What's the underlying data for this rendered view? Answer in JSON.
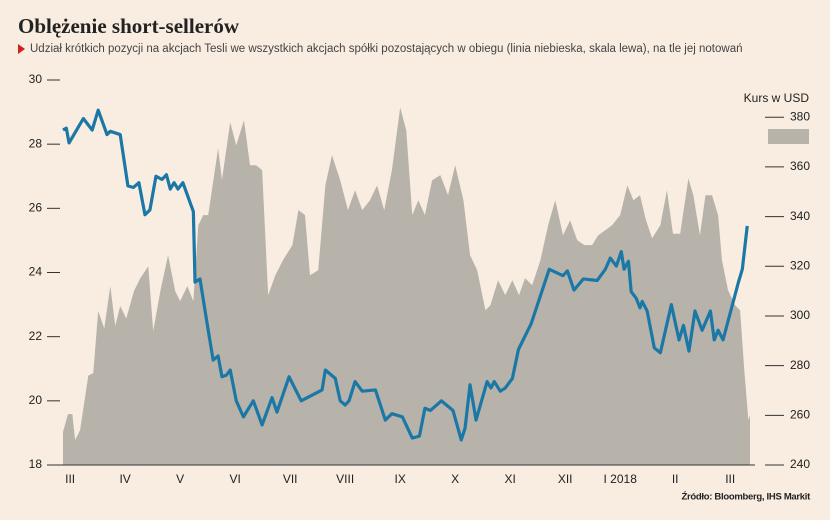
{
  "chart_data": {
    "type": "line",
    "title": "Oblężenie short-sellerów",
    "subtitle": "Udział krótkich pozycji na akcjach Tesli we wszystkich akcjach spółki pozostających w obiegu (linia niebieska, skala lewa), na tle jej notowań",
    "source": "Źródło: Bloomberg, IHS Markit",
    "xlim": [
      -0.13,
      12.36
    ],
    "xticks": [
      {
        "value": 0,
        "label": "III"
      },
      {
        "value": 1,
        "label": "IV"
      },
      {
        "value": 2,
        "label": "V"
      },
      {
        "value": 3,
        "label": "VI"
      },
      {
        "value": 4,
        "label": "VII"
      },
      {
        "value": 5,
        "label": "VIII"
      },
      {
        "value": 6,
        "label": "IX"
      },
      {
        "value": 7,
        "label": "X"
      },
      {
        "value": 8,
        "label": "XI"
      },
      {
        "value": 9,
        "label": "XII"
      },
      {
        "value": 10,
        "label": "I 2018"
      },
      {
        "value": 11,
        "label": "II"
      },
      {
        "value": 12,
        "label": "III"
      }
    ],
    "ylim": [
      18,
      30
    ],
    "yticks": [
      18,
      20,
      22,
      24,
      26,
      28,
      30
    ],
    "y2lim": [
      240,
      395
    ],
    "y2ticks": [
      240,
      260,
      280,
      300,
      320,
      340,
      360,
      380
    ],
    "grid": false,
    "series": [
      {
        "name": "Kurs w USD",
        "type": "area",
        "axis": "y2",
        "color": "#b7b3aa",
        "x": [
          -0.13,
          -0.04,
          0.04,
          0.09,
          0.18,
          0.33,
          0.42,
          0.51,
          0.62,
          0.73,
          0.82,
          0.91,
          1.02,
          1.16,
          1.27,
          1.42,
          1.51,
          1.64,
          1.78,
          1.91,
          2.0,
          2.13,
          2.24,
          2.33,
          2.42,
          2.51,
          2.69,
          2.76,
          2.91,
          3.02,
          3.16,
          3.27,
          3.38,
          3.49,
          3.6,
          3.73,
          3.87,
          4.04,
          4.15,
          4.27,
          4.36,
          4.51,
          4.64,
          4.76,
          4.91,
          5.05,
          5.18,
          5.31,
          5.45,
          5.58,
          5.71,
          5.85,
          6.0,
          6.11,
          6.22,
          6.33,
          6.45,
          6.58,
          6.73,
          6.87,
          7.0,
          7.15,
          7.27,
          7.4,
          7.55,
          7.64,
          7.78,
          7.91,
          8.04,
          8.16,
          8.27,
          8.4,
          8.55,
          8.69,
          8.82,
          8.96,
          9.09,
          9.22,
          9.35,
          9.49,
          9.6,
          9.73,
          9.85,
          10.0,
          10.13,
          10.24,
          10.36,
          10.47,
          10.58,
          10.73,
          10.85,
          10.96,
          11.09,
          11.24,
          11.33,
          11.45,
          11.55,
          11.67,
          11.78,
          11.85,
          11.96,
          12.09,
          12.18,
          12.25,
          12.33,
          12.36
        ],
        "values": [
          253.3,
          260.5,
          260.5,
          250,
          254,
          276,
          277,
          302,
          295,
          312,
          296,
          304,
          299,
          310,
          315,
          320,
          294,
          310,
          324.5,
          310,
          306,
          312,
          306,
          336.5,
          340.6,
          340.6,
          367.5,
          354.8,
          378,
          368.7,
          378.8,
          360.7,
          360.7,
          358.7,
          308.4,
          316.4,
          322.5,
          328.5,
          342.6,
          340.6,
          316.4,
          318.4,
          352.6,
          364.7,
          354.6,
          342.6,
          350.6,
          342.6,
          346.6,
          352.6,
          342.6,
          358.7,
          384,
          374.8,
          340.6,
          346.6,
          340.6,
          354.6,
          356.7,
          348.6,
          360.7,
          346.6,
          324.5,
          318.4,
          302.3,
          304.3,
          314.4,
          308.4,
          314.4,
          308.4,
          315.2,
          312.4,
          322.5,
          336.5,
          346.6,
          332.5,
          338.5,
          330.5,
          328.5,
          328.5,
          332.5,
          334.5,
          336.5,
          340.6,
          352.6,
          346.6,
          348.6,
          338.5,
          331.3,
          336.5,
          350.6,
          333.1,
          333.1,
          355.4,
          348.6,
          332.5,
          348.6,
          348.6,
          340.6,
          322.5,
          310.4,
          304.3,
          302.3,
          280,
          258.1,
          260
        ]
      },
      {
        "type": "line",
        "axis": "y",
        "color": "#1b78a6",
        "x": [
          -0.13,
          -0.07,
          -0.02,
          0.24,
          0.4,
          0.51,
          0.67,
          0.73,
          0.91,
          1.05,
          1.15,
          1.25,
          1.36,
          1.45,
          1.56,
          1.67,
          1.75,
          1.82,
          1.89,
          1.96,
          2.05,
          2.24,
          2.27,
          2.36,
          2.51,
          2.6,
          2.69,
          2.76,
          2.84,
          2.91,
          3.02,
          3.15,
          3.33,
          3.49,
          3.67,
          3.76,
          3.98,
          4.2,
          4.58,
          4.64,
          4.82,
          4.91,
          5.0,
          5.07,
          5.18,
          5.31,
          5.55,
          5.73,
          5.85,
          6.04,
          6.22,
          6.35,
          6.45,
          6.55,
          6.75,
          6.96,
          7.11,
          7.18,
          7.27,
          7.38,
          7.58,
          7.65,
          7.71,
          7.82,
          7.91,
          8.04,
          8.15,
          8.38,
          8.71,
          8.96,
          9.04,
          9.16,
          9.33,
          9.58,
          9.73,
          9.82,
          9.93,
          10.02,
          10.07,
          10.15,
          10.2,
          10.29,
          10.36,
          10.4,
          10.49,
          10.62,
          10.73,
          10.93,
          11.07,
          11.15,
          11.25,
          11.36,
          11.49,
          11.64,
          11.71,
          11.78,
          11.87,
          12.15,
          12.22,
          12.31
        ],
        "values": [
          28.44,
          28.5,
          28.04,
          28.8,
          28.44,
          29.06,
          28.3,
          28.4,
          28.3,
          26.7,
          26.65,
          26.8,
          25.8,
          25.95,
          27.0,
          26.9,
          27.05,
          26.6,
          26.8,
          26.6,
          26.8,
          25.9,
          23.7,
          23.8,
          22.2,
          21.27,
          21.4,
          20.75,
          20.8,
          20.96,
          20.0,
          19.5,
          20.0,
          19.25,
          20.1,
          19.65,
          20.75,
          20.0,
          20.34,
          20.96,
          20.7,
          20.0,
          19.87,
          20.0,
          20.6,
          20.3,
          20.34,
          19.4,
          19.6,
          19.5,
          18.84,
          18.9,
          19.77,
          19.7,
          20.0,
          19.7,
          18.78,
          19.15,
          20.5,
          19.4,
          20.6,
          20.4,
          20.6,
          20.3,
          20.4,
          20.7,
          21.6,
          22.4,
          24.1,
          23.9,
          24.05,
          23.45,
          23.8,
          23.75,
          24.1,
          24.45,
          24.2,
          24.65,
          24.1,
          24.35,
          23.4,
          23.2,
          22.9,
          23.1,
          22.8,
          21.65,
          21.5,
          23.0,
          21.9,
          22.35,
          21.55,
          22.8,
          22.2,
          22.8,
          21.9,
          22.2,
          21.9,
          23.7,
          24.1,
          25.45
        ]
      }
    ]
  }
}
